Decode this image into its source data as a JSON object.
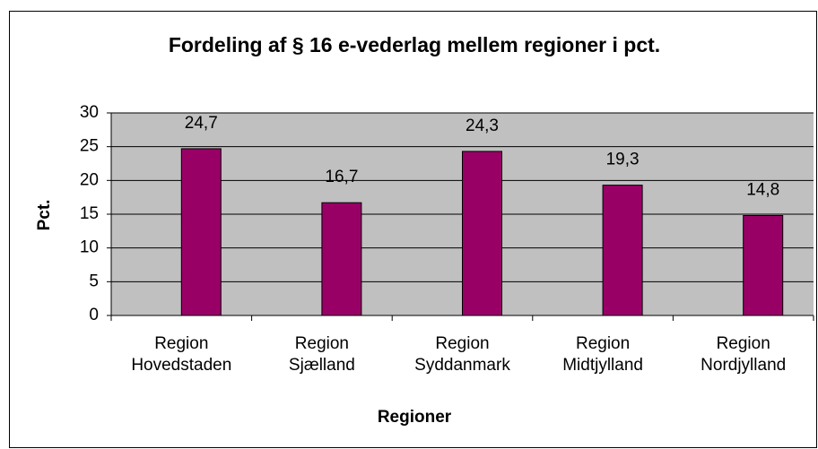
{
  "chart_data": {
    "type": "bar",
    "title": "Fordeling af § 16 e-vederlag mellem regioner i pct.",
    "x_label": "Regioner",
    "y_label": "Pct.",
    "categories": [
      "Region Hovedstaden",
      "Region Sjælland",
      "Region Syddanmark",
      "Region Midtjylland",
      "Region Nordjylland"
    ],
    "values": [
      24.7,
      16.7,
      24.3,
      19.3,
      14.8
    ],
    "value_labels": [
      "24,7",
      "16,7",
      "24,3",
      "19,3",
      "14,8"
    ],
    "color": "#990066",
    "ylim": [
      0,
      30
    ],
    "yticks": [
      0,
      5,
      10,
      15,
      20,
      25,
      30
    ],
    "grid": true
  }
}
